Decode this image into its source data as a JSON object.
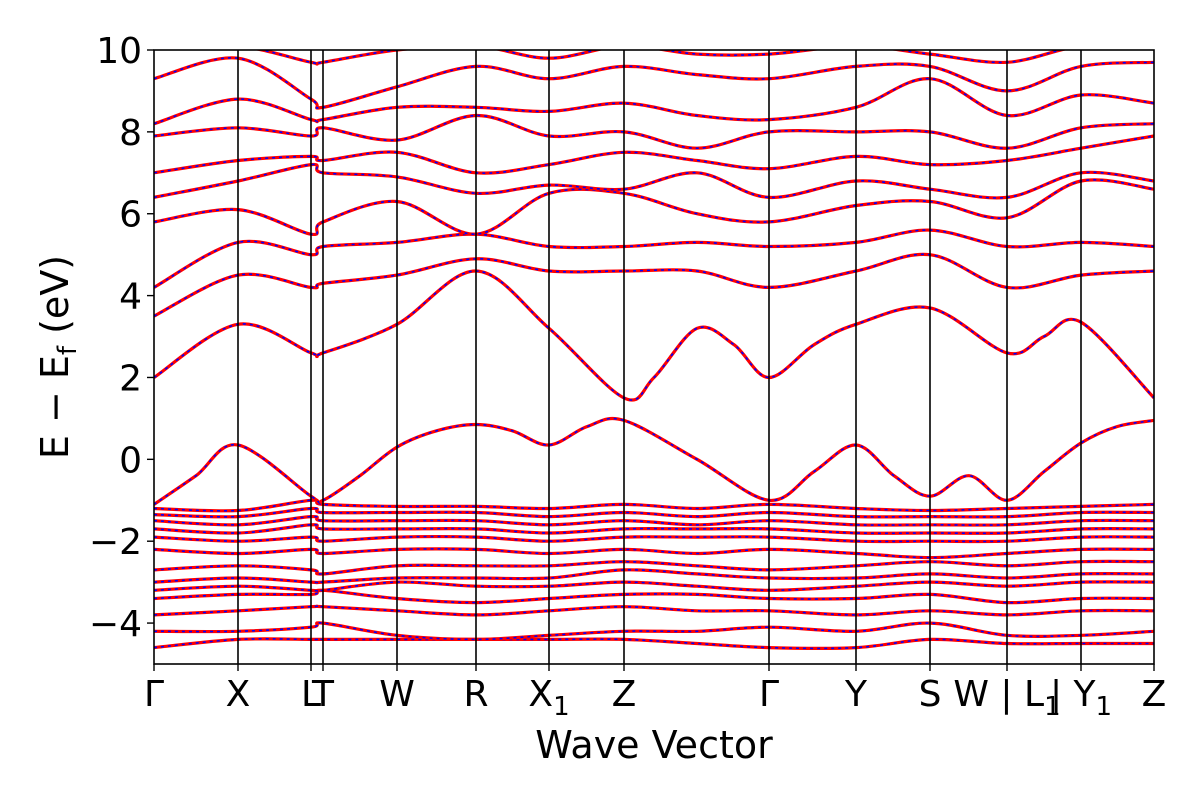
{
  "chart_data": {
    "type": "line",
    "title": "",
    "xlabel": "Wave Vector",
    "ylabel": "E − E_f (eV)",
    "ylabel_parts": {
      "main": "E − E",
      "sub": "f",
      "unit": " (eV)"
    },
    "ylim": [
      -5,
      10
    ],
    "yticks": [
      -4,
      -2,
      0,
      2,
      4,
      6,
      8,
      10
    ],
    "ytick_labels": [
      "−4",
      "−2",
      "0",
      "2",
      "4",
      "6",
      "8",
      "10"
    ],
    "x_range": [
      0,
      1
    ],
    "grid": false,
    "legend": "none",
    "colors": {
      "band_primary": "#ff0000",
      "band_overlay": "#0000ff",
      "axis": "#000000"
    },
    "high_symmetry_points": [
      {
        "x": 0.0,
        "label": "Γ",
        "sub": ""
      },
      {
        "x": 0.084,
        "label": "X",
        "sub": ""
      },
      {
        "x": 0.157,
        "label": "L",
        "sub": ""
      },
      {
        "x": 0.169,
        "label": "T",
        "sub": ""
      },
      {
        "x": 0.243,
        "label": "W",
        "sub": ""
      },
      {
        "x": 0.322,
        "label": "R",
        "sub": ""
      },
      {
        "x": 0.395,
        "label": "X",
        "sub": "1"
      },
      {
        "x": 0.47,
        "label": "Z",
        "sub": ""
      },
      {
        "x": 0.615,
        "label": "Γ",
        "sub": ""
      },
      {
        "x": 0.702,
        "label": "Y",
        "sub": ""
      },
      {
        "x": 0.776,
        "label": "S",
        "sub": ""
      },
      {
        "x": 0.853,
        "label": "W | L",
        "sub": "1"
      },
      {
        "x": 0.927,
        "label": "| Y",
        "sub": "1"
      },
      {
        "x": 1.0,
        "label": "Z",
        "sub": ""
      }
    ],
    "series": [
      {
        "x": [
          0,
          0.084,
          0.157,
          0.169,
          0.243,
          0.322,
          0.395,
          0.47,
          0.543,
          0.615,
          0.702,
          0.776,
          0.853,
          0.927,
          1.0
        ],
        "values": [
          -4.6,
          -4.4,
          -4.4,
          -4.4,
          -4.4,
          -4.4,
          -4.4,
          -4.4,
          -4.5,
          -4.6,
          -4.6,
          -4.4,
          -4.5,
          -4.5,
          -4.5
        ]
      },
      {
        "x": [
          0,
          0.084,
          0.157,
          0.169,
          0.243,
          0.322,
          0.395,
          0.47,
          0.543,
          0.615,
          0.702,
          0.776,
          0.853,
          0.927,
          1.0
        ],
        "values": [
          -4.2,
          -4.2,
          -4.1,
          -4.0,
          -4.3,
          -4.4,
          -4.3,
          -4.2,
          -4.2,
          -4.1,
          -4.2,
          -4.0,
          -4.3,
          -4.3,
          -4.2
        ]
      },
      {
        "x": [
          0,
          0.084,
          0.157,
          0.169,
          0.243,
          0.322,
          0.395,
          0.47,
          0.543,
          0.615,
          0.702,
          0.776,
          0.853,
          0.927,
          1.0
        ],
        "values": [
          -3.8,
          -3.7,
          -3.6,
          -3.6,
          -3.7,
          -3.8,
          -3.7,
          -3.6,
          -3.7,
          -3.7,
          -3.8,
          -3.7,
          -3.8,
          -3.7,
          -3.7
        ]
      },
      {
        "x": [
          0,
          0.084,
          0.157,
          0.169,
          0.243,
          0.322,
          0.395,
          0.47,
          0.543,
          0.615,
          0.702,
          0.776,
          0.853,
          0.927,
          1.0
        ],
        "values": [
          -3.4,
          -3.3,
          -3.3,
          -3.2,
          -3.4,
          -3.5,
          -3.4,
          -3.3,
          -3.3,
          -3.4,
          -3.4,
          -3.3,
          -3.5,
          -3.4,
          -3.4
        ]
      },
      {
        "x": [
          0,
          0.084,
          0.157,
          0.169,
          0.243,
          0.322,
          0.395,
          0.47,
          0.543,
          0.615,
          0.702,
          0.776,
          0.853,
          0.927,
          1.0
        ],
        "values": [
          -3.2,
          -3.1,
          -3.2,
          -3.2,
          -3.0,
          -3.1,
          -3.1,
          -3.0,
          -3.1,
          -3.2,
          -3.1,
          -3.0,
          -3.1,
          -3.0,
          -3.0
        ]
      },
      {
        "x": [
          0,
          0.084,
          0.157,
          0.169,
          0.243,
          0.322,
          0.395,
          0.47,
          0.543,
          0.615,
          0.702,
          0.776,
          0.853,
          0.927,
          1.0
        ],
        "values": [
          -3.0,
          -2.9,
          -3.0,
          -3.0,
          -2.9,
          -2.9,
          -2.9,
          -2.7,
          -2.8,
          -2.9,
          -2.9,
          -2.8,
          -2.9,
          -2.8,
          -2.8
        ]
      },
      {
        "x": [
          0,
          0.084,
          0.157,
          0.169,
          0.243,
          0.322,
          0.395,
          0.47,
          0.543,
          0.615,
          0.702,
          0.776,
          0.853,
          0.927,
          1.0
        ],
        "values": [
          -2.7,
          -2.6,
          -2.7,
          -2.8,
          -2.6,
          -2.6,
          -2.6,
          -2.5,
          -2.6,
          -2.7,
          -2.6,
          -2.5,
          -2.6,
          -2.5,
          -2.5
        ]
      },
      {
        "x": [
          0,
          0.084,
          0.157,
          0.169,
          0.243,
          0.322,
          0.395,
          0.47,
          0.543,
          0.615,
          0.702,
          0.776,
          0.853,
          0.927,
          1.0
        ],
        "values": [
          -2.2,
          -2.3,
          -2.2,
          -2.3,
          -2.2,
          -2.2,
          -2.3,
          -2.2,
          -2.3,
          -2.2,
          -2.3,
          -2.4,
          -2.3,
          -2.2,
          -2.2
        ]
      },
      {
        "x": [
          0,
          0.084,
          0.157,
          0.169,
          0.243,
          0.322,
          0.395,
          0.47,
          0.543,
          0.615,
          0.702,
          0.776,
          0.853,
          0.927,
          1.0
        ],
        "values": [
          -1.9,
          -2.0,
          -1.9,
          -2.0,
          -1.9,
          -1.9,
          -2.0,
          -1.9,
          -1.9,
          -1.9,
          -2.0,
          -2.0,
          -2.0,
          -1.9,
          -1.9
        ]
      },
      {
        "x": [
          0,
          0.084,
          0.157,
          0.169,
          0.243,
          0.322,
          0.395,
          0.47,
          0.543,
          0.615,
          0.702,
          0.776,
          0.853,
          0.927,
          1.0
        ],
        "values": [
          -1.7,
          -1.8,
          -1.6,
          -1.7,
          -1.7,
          -1.7,
          -1.8,
          -1.7,
          -1.7,
          -1.7,
          -1.8,
          -1.8,
          -1.8,
          -1.7,
          -1.7
        ]
      },
      {
        "x": [
          0,
          0.084,
          0.157,
          0.169,
          0.243,
          0.322,
          0.395,
          0.47,
          0.543,
          0.615,
          0.702,
          0.776,
          0.853,
          0.927,
          1.0
        ],
        "values": [
          -1.5,
          -1.6,
          -1.4,
          -1.5,
          -1.5,
          -1.5,
          -1.6,
          -1.5,
          -1.6,
          -1.5,
          -1.6,
          -1.6,
          -1.6,
          -1.5,
          -1.5
        ]
      },
      {
        "x": [
          0,
          0.084,
          0.157,
          0.169,
          0.243,
          0.322,
          0.395,
          0.47,
          0.543,
          0.615,
          0.702,
          0.776,
          0.853,
          0.927,
          1.0
        ],
        "values": [
          -1.35,
          -1.4,
          -1.2,
          -1.3,
          -1.3,
          -1.3,
          -1.4,
          -1.3,
          -1.4,
          -1.3,
          -1.4,
          -1.4,
          -1.4,
          -1.3,
          -1.3
        ]
      },
      {
        "x": [
          0,
          0.084,
          0.157,
          0.169,
          0.243,
          0.322,
          0.395,
          0.47,
          0.543,
          0.615,
          0.702,
          0.776,
          0.853,
          0.927,
          1.0
        ],
        "values": [
          -1.2,
          -1.25,
          -1.0,
          -1.1,
          -1.15,
          -1.15,
          -1.2,
          -1.1,
          -1.2,
          -1.1,
          -1.2,
          -1.25,
          -1.2,
          -1.15,
          -1.1
        ]
      },
      {
        "x": [
          0,
          0.042,
          0.084,
          0.157,
          0.169,
          0.206,
          0.243,
          0.283,
          0.322,
          0.358,
          0.395,
          0.433,
          0.47,
          0.543,
          0.615,
          0.66,
          0.702,
          0.74,
          0.776,
          0.815,
          0.853,
          0.89,
          0.927,
          0.963,
          1.0
        ],
        "values": [
          -1.1,
          -0.4,
          0.35,
          -0.9,
          -1.0,
          -0.4,
          0.3,
          0.7,
          0.85,
          0.7,
          0.35,
          0.8,
          0.95,
          0.0,
          -1.0,
          -0.3,
          0.35,
          -0.4,
          -0.9,
          -0.4,
          -1.0,
          -0.3,
          0.4,
          0.8,
          0.95
        ]
      },
      {
        "x": [
          0,
          0.084,
          0.157,
          0.169,
          0.243,
          0.322,
          0.395,
          0.47,
          0.5,
          0.543,
          0.58,
          0.615,
          0.66,
          0.702,
          0.776,
          0.853,
          0.89,
          0.927,
          1.0
        ],
        "values": [
          2.0,
          3.3,
          2.6,
          2.6,
          3.3,
          4.6,
          3.2,
          1.5,
          2.0,
          3.2,
          2.8,
          2.0,
          2.8,
          3.3,
          3.7,
          2.6,
          3.0,
          3.35,
          1.5
        ]
      },
      {
        "x": [
          0,
          0.084,
          0.157,
          0.169,
          0.243,
          0.322,
          0.395,
          0.47,
          0.543,
          0.615,
          0.702,
          0.776,
          0.853,
          0.927,
          1.0
        ],
        "values": [
          3.5,
          4.5,
          4.2,
          4.3,
          4.5,
          4.9,
          4.6,
          4.6,
          4.6,
          4.2,
          4.6,
          5.0,
          4.2,
          4.5,
          4.6
        ]
      },
      {
        "x": [
          0,
          0.084,
          0.157,
          0.169,
          0.243,
          0.322,
          0.395,
          0.47,
          0.543,
          0.615,
          0.702,
          0.776,
          0.853,
          0.927,
          1.0
        ],
        "values": [
          4.2,
          5.3,
          5.0,
          5.2,
          5.3,
          5.5,
          5.2,
          5.2,
          5.3,
          5.2,
          5.3,
          5.6,
          5.2,
          5.3,
          5.2
        ]
      },
      {
        "x": [
          0,
          0.084,
          0.157,
          0.169,
          0.243,
          0.322,
          0.395,
          0.47,
          0.543,
          0.615,
          0.702,
          0.776,
          0.853,
          0.927,
          1.0
        ],
        "values": [
          5.8,
          6.1,
          5.5,
          5.8,
          6.3,
          5.5,
          6.5,
          6.5,
          6.0,
          5.8,
          6.2,
          6.3,
          5.9,
          6.8,
          6.6
        ]
      },
      {
        "x": [
          0,
          0.084,
          0.157,
          0.169,
          0.243,
          0.322,
          0.395,
          0.47,
          0.543,
          0.615,
          0.702,
          0.776,
          0.853,
          0.927,
          1.0
        ],
        "values": [
          6.4,
          6.8,
          7.2,
          7.0,
          6.9,
          6.5,
          6.7,
          6.6,
          7.0,
          6.4,
          6.8,
          6.6,
          6.4,
          7.0,
          6.8
        ]
      },
      {
        "x": [
          0,
          0.084,
          0.157,
          0.169,
          0.243,
          0.322,
          0.395,
          0.47,
          0.543,
          0.615,
          0.702,
          0.776,
          0.853,
          0.927,
          1.0
        ],
        "values": [
          7.0,
          7.3,
          7.4,
          7.3,
          7.5,
          7.0,
          7.2,
          7.5,
          7.3,
          7.1,
          7.4,
          7.2,
          7.3,
          7.6,
          7.9
        ]
      },
      {
        "x": [
          0,
          0.084,
          0.157,
          0.169,
          0.243,
          0.322,
          0.395,
          0.47,
          0.543,
          0.615,
          0.702,
          0.776,
          0.853,
          0.927,
          1.0
        ],
        "values": [
          7.9,
          8.1,
          7.9,
          8.1,
          7.8,
          8.4,
          7.9,
          8.0,
          7.6,
          8.0,
          8.0,
          8.0,
          7.6,
          8.1,
          8.2
        ]
      },
      {
        "x": [
          0,
          0.084,
          0.157,
          0.169,
          0.243,
          0.322,
          0.395,
          0.47,
          0.543,
          0.615,
          0.702,
          0.776,
          0.853,
          0.927,
          1.0
        ],
        "values": [
          8.2,
          8.8,
          8.3,
          8.3,
          8.6,
          8.6,
          8.5,
          8.7,
          8.4,
          8.3,
          8.6,
          9.3,
          8.4,
          8.9,
          8.7
        ]
      },
      {
        "x": [
          0,
          0.084,
          0.157,
          0.169,
          0.243,
          0.322,
          0.395,
          0.47,
          0.543,
          0.615,
          0.702,
          0.776,
          0.853,
          0.927,
          1.0
        ],
        "values": [
          9.3,
          9.8,
          8.8,
          8.6,
          9.1,
          9.6,
          9.3,
          9.6,
          9.4,
          9.3,
          9.6,
          9.6,
          9.0,
          9.6,
          9.7
        ]
      },
      {
        "x": [
          0,
          0.084,
          0.157,
          0.169,
          0.243,
          0.322,
          0.395,
          0.47,
          0.543,
          0.615,
          0.702,
          0.776,
          0.853,
          0.927,
          1.0
        ],
        "values": [
          10.1,
          10.1,
          9.7,
          9.7,
          10.0,
          10.1,
          9.8,
          10.1,
          9.9,
          9.9,
          10.1,
          9.9,
          9.7,
          10.1,
          10.1
        ]
      }
    ]
  }
}
